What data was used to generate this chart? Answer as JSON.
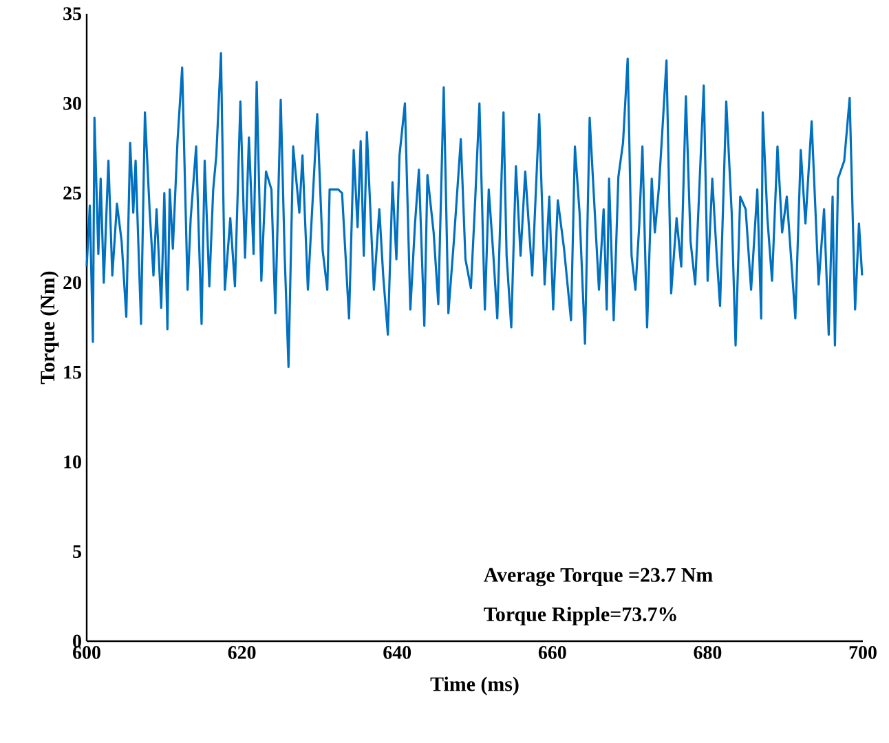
{
  "chart_data": {
    "type": "line",
    "xlabel": "Time (ms)",
    "ylabel": "Torque (Nm)",
    "xlim": [
      600,
      700
    ],
    "ylim": [
      0,
      35
    ],
    "xticks": [
      600,
      620,
      640,
      660,
      680,
      700
    ],
    "yticks": [
      0,
      5,
      10,
      15,
      20,
      25,
      30,
      35
    ],
    "marker": "none",
    "line_style": "solid",
    "annotations": [
      "Average Torque =23.7 Nm",
      "Torque Ripple=73.7%"
    ],
    "series": [
      {
        "color": "#0070c0",
        "x": [
          600.0,
          600.4,
          600.8,
          601.0,
          601.5,
          601.8,
          602.2,
          602.8,
          603.3,
          603.9,
          604.5,
          605.1,
          605.6,
          606.0,
          606.3,
          607.0,
          607.5,
          608.1,
          608.6,
          609.0,
          609.6,
          610.0,
          610.4,
          610.7,
          611.1,
          611.7,
          612.3,
          613.0,
          613.4,
          614.1,
          614.8,
          615.2,
          615.8,
          616.3,
          616.7,
          617.3,
          617.8,
          618.5,
          619.1,
          619.8,
          620.4,
          620.9,
          621.5,
          621.9,
          622.5,
          623.1,
          623.8,
          624.3,
          625.0,
          625.5,
          626.0,
          626.6,
          627.4,
          627.8,
          628.5,
          629.7,
          630.4,
          631.0,
          631.3,
          632.4,
          632.9,
          633.8,
          634.4,
          634.9,
          635.3,
          635.7,
          636.1,
          637.0,
          637.7,
          638.2,
          638.8,
          639.4,
          639.9,
          640.3,
          641.0,
          641.7,
          642.3,
          642.8,
          643.5,
          643.9,
          644.7,
          645.3,
          646.0,
          646.6,
          647.3,
          648.2,
          648.8,
          649.5,
          650.0,
          650.6,
          651.3,
          651.8,
          652.4,
          652.9,
          653.7,
          654.1,
          654.7,
          655.3,
          655.9,
          656.5,
          657.4,
          658.3,
          659.0,
          659.6,
          660.1,
          660.7,
          661.5,
          662.4,
          662.9,
          663.5,
          664.2,
          664.8,
          665.3,
          666.0,
          666.6,
          667.0,
          667.3,
          667.9,
          668.5,
          669.1,
          669.7,
          670.2,
          670.7,
          671.2,
          671.6,
          672.2,
          672.8,
          673.2,
          673.7,
          674.1,
          674.7,
          675.3,
          676.0,
          676.6,
          677.2,
          677.8,
          678.4,
          679.5,
          680.0,
          680.6,
          681.2,
          681.6,
          682.4,
          683.1,
          683.6,
          684.2,
          684.9,
          685.6,
          686.4,
          686.9,
          687.1,
          687.7,
          688.3,
          689.0,
          689.6,
          690.2,
          691.3,
          692.0,
          692.6,
          693.4,
          694.3,
          695.0,
          695.6,
          696.1,
          696.4,
          696.8,
          697.6,
          698.3,
          699.0,
          699.5,
          699.9
        ],
        "values": [
          20.9,
          24.3,
          16.7,
          29.2,
          21.6,
          25.8,
          20.0,
          26.8,
          20.4,
          24.4,
          22.3,
          18.1,
          27.8,
          23.9,
          26.8,
          17.7,
          29.5,
          24.1,
          20.4,
          24.1,
          18.6,
          25.0,
          17.4,
          25.2,
          21.9,
          27.9,
          32.0,
          19.6,
          23.6,
          27.6,
          17.7,
          26.8,
          19.8,
          25.2,
          27.1,
          32.8,
          19.6,
          23.6,
          19.8,
          30.1,
          21.4,
          28.1,
          21.6,
          31.2,
          20.1,
          26.2,
          25.2,
          18.3,
          30.2,
          21.6,
          15.3,
          27.6,
          23.9,
          27.1,
          19.6,
          29.4,
          21.8,
          19.6,
          25.2,
          25.2,
          25.0,
          18.0,
          27.4,
          23.1,
          27.9,
          21.5,
          28.4,
          19.6,
          24.1,
          20.4,
          17.1,
          25.6,
          21.3,
          27.1,
          30.0,
          18.5,
          23.3,
          26.3,
          17.6,
          26.0,
          22.8,
          18.8,
          30.9,
          18.3,
          22.3,
          28.0,
          21.3,
          19.7,
          24.1,
          30.0,
          18.5,
          25.2,
          21.5,
          18.0,
          29.5,
          21.5,
          17.5,
          26.5,
          21.5,
          26.2,
          20.4,
          29.4,
          19.9,
          24.8,
          18.5,
          24.6,
          21.9,
          17.9,
          27.6,
          23.9,
          16.6,
          29.2,
          25.2,
          19.6,
          24.1,
          18.5,
          25.8,
          17.9,
          25.9,
          27.8,
          32.5,
          21.5,
          19.6,
          23.3,
          27.6,
          17.5,
          25.8,
          22.8,
          25.2,
          28.0,
          32.4,
          19.4,
          23.6,
          20.9,
          30.4,
          22.3,
          19.9,
          31.0,
          20.1,
          25.8,
          21.3,
          18.7,
          30.1,
          23.9,
          16.5,
          24.8,
          24.1,
          19.6,
          25.2,
          18.0,
          29.5,
          23.6,
          20.1,
          27.6,
          22.8,
          24.8,
          18.0,
          27.4,
          23.3,
          29.0,
          19.9,
          24.1,
          17.1,
          24.8,
          16.5,
          25.8,
          26.8,
          30.3,
          18.5,
          23.3,
          20.4
        ]
      }
    ]
  }
}
